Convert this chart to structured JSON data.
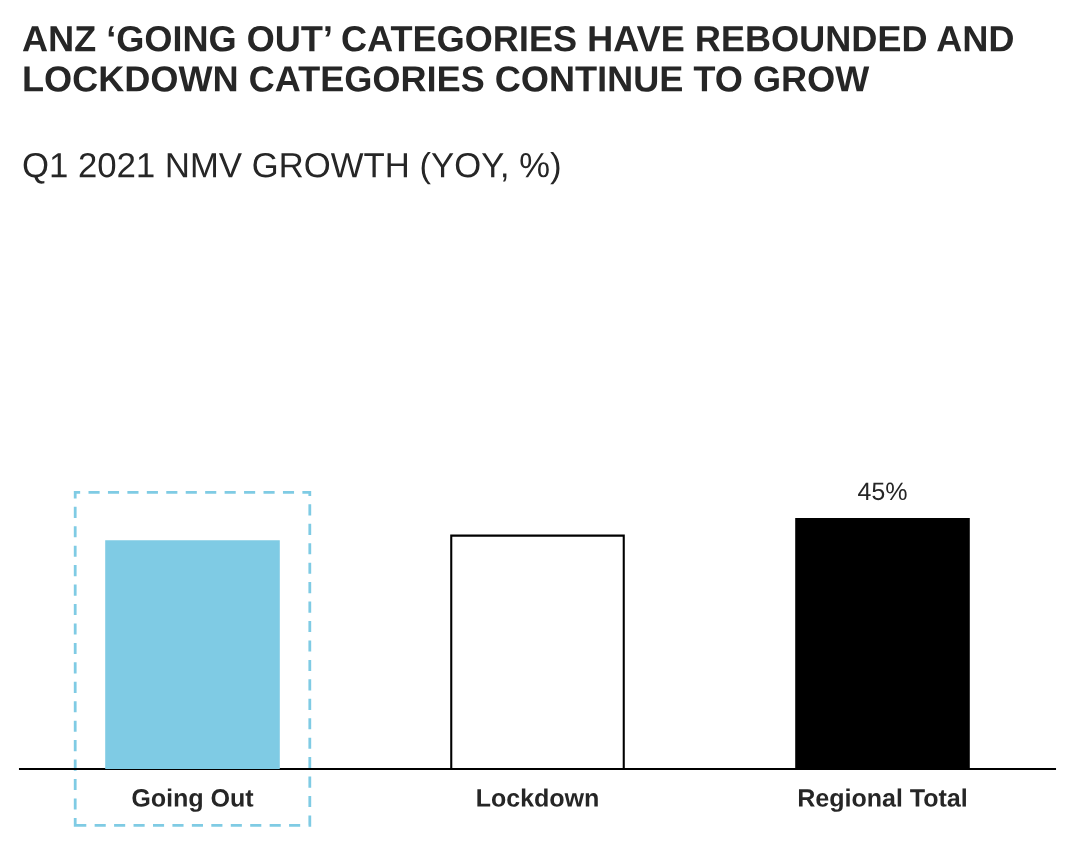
{
  "chart_data": {
    "type": "bar",
    "title": "ANZ ‘GOING OUT’ CATEGORIES HAVE REBOUNDED AND\nLOCKDOWN CATEGORIES CONTINUE TO GROW",
    "subtitle": "Q1 2021 NMV GROWTH (YOY, %)",
    "categories": [
      "Going Out",
      "Lockdown",
      "Regional Total"
    ],
    "values": [
      41,
      42,
      45
    ],
    "colors": [
      "#7fcbe4",
      "#ffffff",
      "#000000"
    ],
    "value_labels": [
      null,
      null,
      "45%"
    ],
    "grid": false,
    "legend": false
  }
}
